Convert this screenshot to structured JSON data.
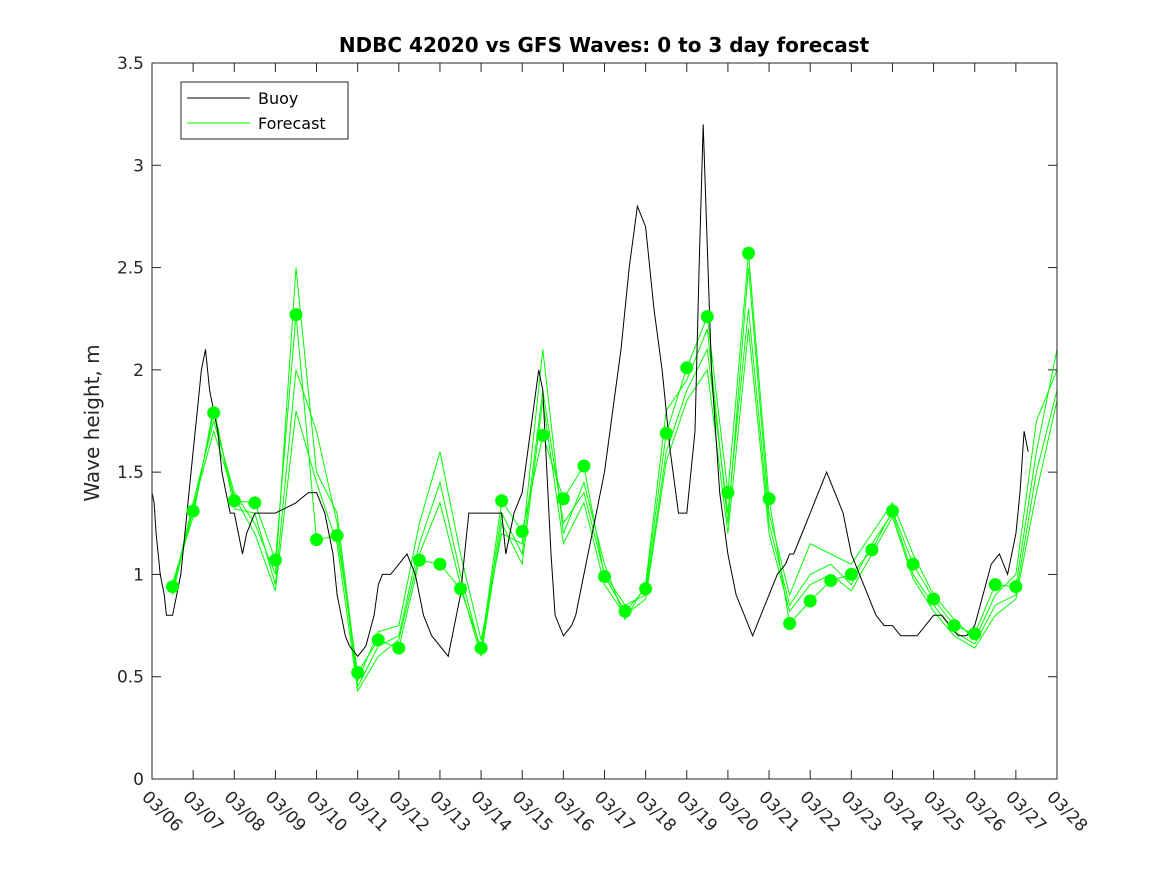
{
  "chart_data": {
    "type": "line",
    "title": "NDBC 42020 vs GFS Waves: 0 to 3 day forecast",
    "xlabel": "",
    "ylabel": "Wave height, m",
    "xlim": [
      0,
      22
    ],
    "ylim": [
      0,
      3.5
    ],
    "y_ticks": [
      "0",
      "0.5",
      "1",
      "1.5",
      "2",
      "2.5",
      "3",
      "3.5"
    ],
    "x_tick_labels": [
      "03/06",
      "03/07",
      "03/08",
      "03/09",
      "03/10",
      "03/11",
      "03/12",
      "03/13",
      "03/14",
      "03/15",
      "03/16",
      "03/17",
      "03/18",
      "03/19",
      "03/20",
      "03/21",
      "03/22",
      "03/23",
      "03/24",
      "03/25",
      "03/26",
      "03/27",
      "03/28"
    ],
    "legend": {
      "position": "top-left",
      "entries": [
        "Buoy",
        "Forecast"
      ]
    },
    "colors": {
      "buoy": "#000000",
      "forecast": "#00ff00"
    },
    "buoy": {
      "x": [
        0,
        0.05,
        0.1,
        0.15,
        0.2,
        0.3,
        0.35,
        0.5,
        0.6,
        0.7,
        0.8,
        0.9,
        1.0,
        1.1,
        1.2,
        1.3,
        1.4,
        1.5,
        1.6,
        1.7,
        1.8,
        1.9,
        2.0,
        2.1,
        2.2,
        2.3,
        2.4,
        2.5,
        2.6,
        2.8,
        3.0,
        3.5,
        3.8,
        4.0,
        4.2,
        4.4,
        4.5,
        4.6,
        4.7,
        4.8,
        5.0,
        5.2,
        5.4,
        5.5,
        5.6,
        5.7,
        5.8,
        6.0,
        6.2,
        6.4,
        6.5,
        6.6,
        6.8,
        7.0,
        7.2,
        7.4,
        7.5,
        7.6,
        7.7,
        7.8,
        8.0,
        8.2,
        8.4,
        8.5,
        8.6,
        8.7,
        8.8,
        9.0,
        9.2,
        9.4,
        9.5,
        9.6,
        9.7,
        9.8,
        10.0,
        10.2,
        10.3,
        10.4,
        10.5,
        10.6,
        10.7,
        10.8,
        11.0,
        11.2,
        11.4,
        11.6,
        11.8,
        12.0,
        12.2,
        12.4,
        12.6,
        12.8,
        13.0,
        13.2,
        13.3,
        13.4,
        13.5,
        13.6,
        13.8,
        14.0,
        14.2,
        14.4,
        14.5,
        14.6,
        14.8,
        15.0,
        15.2,
        15.4,
        15.5,
        15.6,
        15.8,
        16.0,
        16.2,
        16.4,
        16.6,
        16.8,
        17.0,
        17.2,
        17.4,
        17.6,
        17.8,
        18.0,
        18.2,
        18.4,
        18.6,
        18.8,
        19.0,
        19.2,
        19.4,
        19.6,
        19.8,
        20.0,
        20.2,
        20.4,
        20.6,
        20.8,
        21.0,
        21.1,
        21.2,
        21.3
      ],
      "y": [
        1.4,
        1.35,
        1.2,
        1.1,
        1.0,
        0.9,
        0.8,
        0.8,
        0.9,
        1.0,
        1.2,
        1.4,
        1.6,
        1.8,
        2.0,
        2.1,
        1.9,
        1.8,
        1.7,
        1.5,
        1.4,
        1.3,
        1.3,
        1.2,
        1.1,
        1.2,
        1.25,
        1.3,
        1.3,
        1.3,
        1.3,
        1.35,
        1.4,
        1.4,
        1.3,
        1.1,
        0.9,
        0.8,
        0.7,
        0.65,
        0.6,
        0.65,
        0.8,
        0.95,
        1.0,
        1.0,
        1.0,
        1.05,
        1.1,
        1.0,
        0.9,
        0.8,
        0.7,
        0.65,
        0.6,
        0.8,
        0.9,
        1.1,
        1.3,
        1.3,
        1.3,
        1.3,
        1.3,
        1.3,
        1.1,
        1.2,
        1.3,
        1.4,
        1.7,
        2.0,
        1.9,
        1.5,
        1.1,
        0.8,
        0.7,
        0.75,
        0.8,
        0.9,
        1.0,
        1.1,
        1.2,
        1.3,
        1.5,
        1.8,
        2.1,
        2.5,
        2.8,
        2.7,
        2.3,
        2.0,
        1.6,
        1.3,
        1.3,
        1.7,
        2.5,
        3.2,
        2.6,
        2.0,
        1.4,
        1.1,
        0.9,
        0.8,
        0.75,
        0.7,
        0.8,
        0.9,
        1.0,
        1.05,
        1.1,
        1.1,
        1.2,
        1.3,
        1.4,
        1.5,
        1.4,
        1.3,
        1.1,
        1.0,
        0.9,
        0.8,
        0.75,
        0.75,
        0.7,
        0.7,
        0.7,
        0.75,
        0.8,
        0.8,
        0.75,
        0.7,
        0.7,
        0.75,
        0.9,
        1.05,
        1.1,
        1.0,
        1.2,
        1.4,
        1.7,
        1.6
      ]
    },
    "forecast_runs": [
      {
        "x": [
          0.5,
          1.0,
          1.5,
          2.0,
          2.5,
          3.0,
          3.5,
          4.0,
          4.5,
          5.0,
          5.5,
          6.0,
          6.5,
          7.0,
          7.5,
          8.0,
          8.5,
          9.0,
          9.5,
          10.0,
          10.5,
          11.0,
          11.5,
          12.0,
          12.5,
          13.0,
          13.5,
          14.0,
          14.5,
          15.0,
          15.5,
          16.0,
          16.5,
          17.0,
          17.5,
          18.0,
          18.5,
          19.0,
          19.5,
          20.0,
          20.5,
          21.0,
          21.5,
          22.0
        ],
        "y": [
          0.94,
          1.31,
          1.79,
          1.36,
          1.35,
          1.07,
          2.27,
          1.17,
          1.19,
          0.52,
          0.68,
          0.64,
          1.07,
          1.05,
          0.93,
          0.64,
          1.36,
          1.21,
          1.68,
          1.37,
          1.53,
          0.99,
          0.82,
          0.93,
          1.69,
          2.01,
          2.26,
          1.4,
          2.57,
          1.37,
          0.76,
          0.87,
          0.97,
          1.0,
          1.12,
          1.31,
          1.05,
          0.88,
          0.75,
          0.71,
          0.95,
          0.94,
          1.6,
          2.1
        ]
      },
      {
        "x": [
          0.5,
          1.0,
          1.5,
          2.0,
          2.5,
          3.0,
          3.5,
          4.0,
          4.5,
          5.0,
          5.5,
          6.0,
          6.5,
          7.0,
          7.5,
          8.0,
          8.5,
          9.0,
          9.5,
          10.0,
          10.5,
          11.0,
          11.5,
          12.0,
          12.5,
          13.0,
          13.5,
          14.0,
          14.5,
          15.0,
          15.5,
          16.0,
          16.5,
          17.0,
          17.5,
          18.0,
          18.5,
          19.0,
          19.5,
          20.0,
          20.5,
          21.0,
          21.5,
          22.0
        ],
        "y": [
          0.92,
          1.35,
          1.75,
          1.4,
          1.25,
          1.0,
          2.5,
          1.5,
          1.3,
          0.48,
          0.72,
          0.75,
          1.25,
          1.6,
          1.1,
          0.68,
          1.2,
          1.15,
          2.1,
          1.2,
          1.45,
          1.05,
          0.78,
          0.95,
          1.8,
          1.95,
          2.2,
          1.25,
          2.5,
          1.3,
          0.9,
          1.15,
          1.1,
          1.05,
          1.2,
          1.35,
          1.1,
          0.9,
          0.78,
          0.68,
          0.9,
          1.0,
          1.75,
          2.0
        ]
      },
      {
        "x": [
          0.5,
          1.0,
          1.5,
          2.0,
          2.5,
          3.0,
          3.5,
          4.0,
          4.5,
          5.0,
          5.5,
          6.0,
          6.5,
          7.0,
          7.5,
          8.0,
          8.5,
          9.0,
          9.5,
          10.0,
          10.5,
          11.0,
          11.5,
          12.0,
          12.5,
          13.0,
          13.5,
          14.0,
          14.5,
          15.0,
          15.5,
          16.0,
          16.5,
          17.0,
          17.5,
          18.0,
          18.5,
          19.0,
          19.5,
          20.0,
          20.5,
          21.0,
          21.5,
          22.0
        ],
        "y": [
          0.96,
          1.28,
          1.82,
          1.32,
          1.3,
          0.95,
          2.0,
          1.7,
          1.25,
          0.45,
          0.65,
          0.7,
          1.15,
          1.45,
          1.0,
          0.62,
          1.3,
          1.1,
          1.9,
          1.25,
          1.4,
          1.0,
          0.85,
          0.9,
          1.6,
          1.9,
          2.1,
          1.3,
          2.3,
          1.25,
          0.85,
          1.0,
          1.05,
          0.95,
          1.15,
          1.3,
          1.0,
          0.85,
          0.72,
          0.66,
          0.85,
          0.9,
          1.5,
          1.9
        ]
      },
      {
        "x": [
          0.5,
          1.0,
          1.5,
          2.0,
          2.5,
          3.0,
          3.5,
          4.0,
          4.5,
          5.0,
          5.5,
          6.0,
          6.5,
          7.0,
          7.5,
          8.0,
          8.5,
          9.0,
          9.5,
          10.0,
          10.5,
          11.0,
          11.5,
          12.0,
          12.5,
          13.0,
          13.5,
          14.0,
          14.5,
          15.0,
          15.5,
          16.0,
          16.5,
          17.0,
          17.5,
          18.0,
          18.5,
          19.0,
          19.5,
          20.0,
          20.5,
          21.0,
          21.5,
          22.0
        ],
        "y": [
          0.9,
          1.33,
          1.7,
          1.38,
          1.2,
          0.92,
          1.8,
          1.45,
          1.15,
          0.43,
          0.6,
          0.68,
          1.1,
          1.35,
          0.95,
          0.6,
          1.25,
          1.05,
          1.85,
          1.15,
          1.35,
          0.95,
          0.8,
          0.88,
          1.55,
          1.85,
          2.0,
          1.2,
          2.2,
          1.2,
          0.82,
          0.95,
          1.0,
          0.92,
          1.1,
          1.28,
          0.98,
          0.82,
          0.7,
          0.64,
          0.8,
          0.88,
          1.4,
          1.85
        ]
      }
    ]
  }
}
